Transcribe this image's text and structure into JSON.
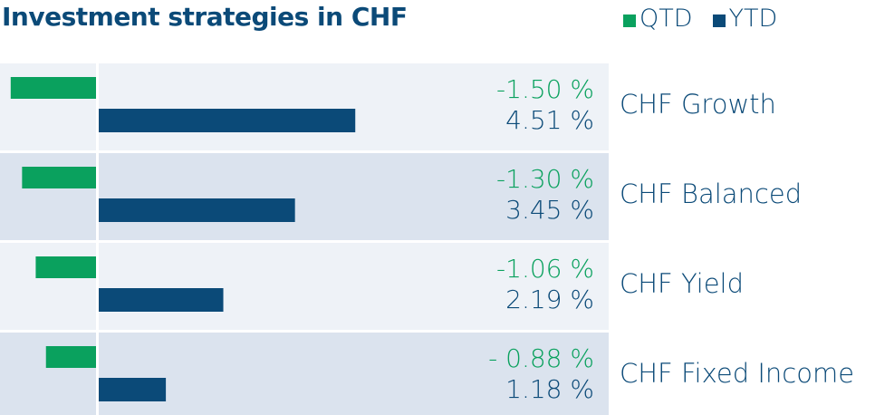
{
  "title": "Investment strategies in CHF",
  "legend": [
    {
      "label": "QTD",
      "color": "#0aa15e"
    },
    {
      "label": "YTD",
      "color": "#0b4a78"
    }
  ],
  "colors": {
    "qtd": "#0aa15e",
    "ytd": "#0b4a78",
    "row_light": "#eef2f7",
    "row_dark": "#dbe3ee",
    "axis": "#ffffff",
    "text_ytd": "#0b4a78",
    "text_qtd": "#0aa15e"
  },
  "chart_data": {
    "type": "bar",
    "orientation": "horizontal",
    "title": "Investment strategies in CHF",
    "categories": [
      "CHF Growth",
      "CHF Balanced",
      "CHF Yield",
      "CHF Fixed Income"
    ],
    "series": [
      {
        "name": "QTD",
        "values": [
          -1.5,
          -1.3,
          -1.06,
          -0.88
        ],
        "labels": [
          "-1.50 %",
          "-1.30 %",
          "-1.06 %",
          "- 0.88 %"
        ]
      },
      {
        "name": "YTD",
        "values": [
          4.51,
          3.45,
          2.19,
          1.18
        ],
        "labels": [
          "4.51 %",
          "3.45 %",
          "2.19 %",
          "1.18 %"
        ]
      }
    ],
    "unit": "%",
    "grid": false,
    "legend_position": "top-right"
  }
}
